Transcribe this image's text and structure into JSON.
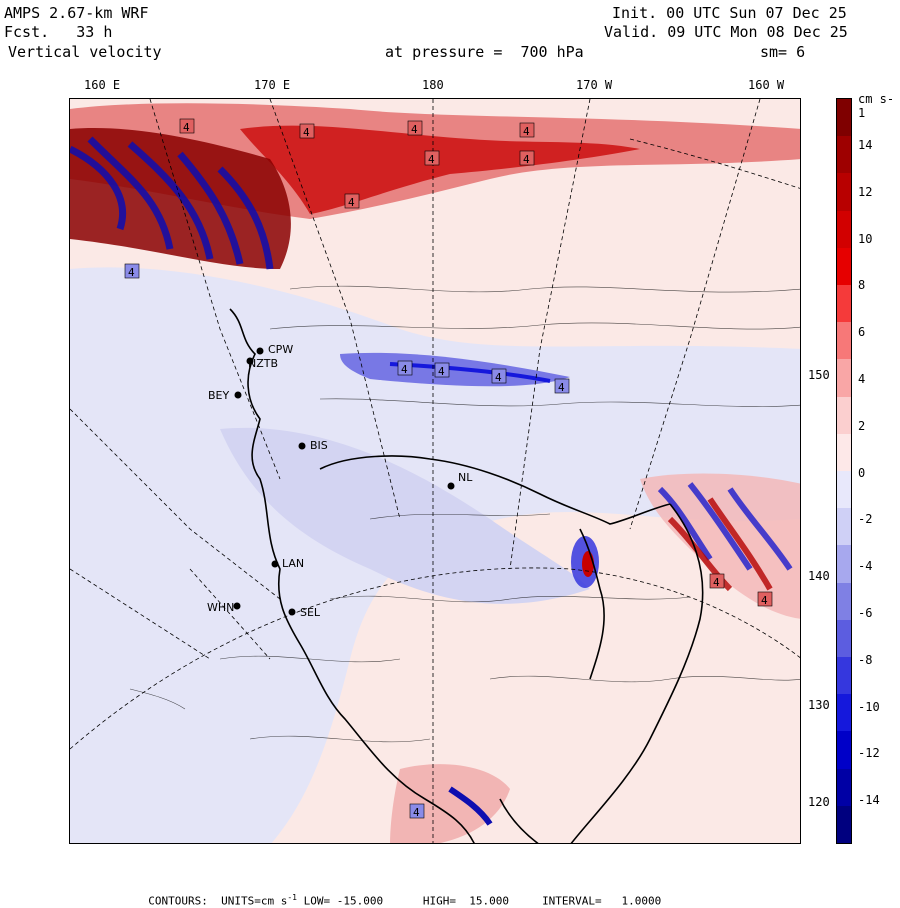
{
  "header": {
    "model": "AMPS 2.67-km WRF",
    "forecast": "Fcst.   33 h",
    "variable": "Vertical velocity",
    "init": "Init. 00 UTC Sun 07 Dec 25",
    "valid": "Valid. 09 UTC Mon 08 Dec 25",
    "level": "at pressure =  700 hPa",
    "smoothing": "sm= 6"
  },
  "longitude_labels": [
    "160 E",
    "170 E",
    "180",
    "170 W",
    "160 W"
  ],
  "latitude_labels": [
    "150 W",
    "140 W",
    "130 W",
    "120 W"
  ],
  "stations": [
    "CPW",
    "NZTB",
    "BEY",
    "BIS",
    "NL",
    "LAN",
    "WHN",
    "SEL"
  ],
  "contour_label": "4",
  "colorbar": {
    "unit": "cm s-1",
    "ticks": [
      "14",
      "12",
      "10",
      "8",
      "6",
      "4",
      "2",
      "0",
      "-2",
      "-4",
      "-6",
      "-8",
      "-10",
      "-12",
      "-14"
    ],
    "colors": [
      "#7f0000",
      "#9e0000",
      "#b80000",
      "#d20000",
      "#e60000",
      "#f53a3a",
      "#f77878",
      "#f9a6a6",
      "#fbcfcf",
      "#fde8e8",
      "#e8e8fb",
      "#cfd0f6",
      "#a7a8ee",
      "#7f80e4",
      "#5c5de0",
      "#3537de",
      "#1518dc",
      "#0000c8",
      "#0000a5",
      "#00007f"
    ]
  },
  "footer": {
    "contours": "CONTOURS:",
    "units": "UNITS=cm s",
    "units_exp": "-1",
    "low": "LOW= -15.000",
    "high": "HIGH=  15.000",
    "interval": "INTERVAL=   1.0000"
  },
  "colors": {
    "positive": "#e60000",
    "negative": "#1518dc",
    "background": "#fbe9e6"
  }
}
